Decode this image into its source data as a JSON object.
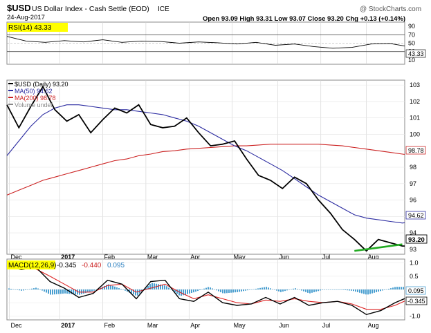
{
  "header": {
    "symbol": "$USD",
    "name": "US Dollar Index - Cash Settle (EOD)",
    "exchange": "ICE",
    "date": "24-Aug-2017",
    "ohlc": "Open 93.09  High 93.31  Low 93.07  Close 93.20  Chg +0.13 (+0.14%)",
    "watermark": "@ StockCharts.com"
  },
  "colors": {
    "price": "#000000",
    "price_down": "#cc0000",
    "ma50": "#2a2aa0",
    "ma200": "#cc2222",
    "macd": "#000000",
    "signal": "#dd2222",
    "histogram": "#4a9fd0",
    "support_line": "#22aa22",
    "highlight": "#ffff00",
    "grid": "#d0d0d0"
  },
  "rsi_panel": {
    "label": "RSI(14) 43.33",
    "current_tag": "43.33",
    "ticks": [
      "90",
      "70",
      "50",
      "30",
      "10"
    ]
  },
  "price_panel": {
    "legend": [
      {
        "label": "$USD (Daily) 93.20",
        "color": "#000000"
      },
      {
        "label": "MA(50) 94.62",
        "color": "#2a2aa0"
      },
      {
        "label": "MA(200) 98.78",
        "color": "#cc2222"
      },
      {
        "label": "Volume undef",
        "color": "#888888"
      }
    ],
    "ticks": [
      "103",
      "102",
      "101",
      "100",
      "99",
      "98",
      "97",
      "96",
      "95",
      "94",
      "93"
    ],
    "tag_price": "93.20",
    "tag_ma50": "94.62",
    "tag_ma200": "98.78"
  },
  "macd_panel": {
    "label": "MACD(12,26,9)",
    "macd_value": "-0.345",
    "signal_value": "-0.440",
    "hist_value": "0.095",
    "ticks": [
      "1.0",
      "0.5",
      "0.0",
      "-0.5",
      "-1.0"
    ],
    "tag_hist": "0.095",
    "tag_macd": "-0.345"
  },
  "x_axis": {
    "labels": [
      "Dec",
      "2017",
      "Feb",
      "Mar",
      "Apr",
      "May",
      "Jun",
      "Jul",
      "Aug"
    ]
  },
  "chart_data": [
    {
      "type": "line",
      "title": "RSI(14)",
      "x": [
        0,
        8,
        16,
        24,
        32,
        40,
        48,
        56,
        64,
        72,
        80,
        88,
        96,
        104,
        112,
        120,
        128,
        136,
        144,
        152,
        160,
        166
      ],
      "series": [
        {
          "name": "RSI(14)",
          "values": [
            66,
            55,
            52,
            56,
            53,
            58,
            52,
            55,
            54,
            50,
            53,
            51,
            48,
            52,
            45,
            48,
            42,
            38,
            40,
            48,
            49,
            43.33
          ]
        }
      ],
      "ylim": [
        0,
        100
      ],
      "reference_lines": [
        70,
        30
      ]
    },
    {
      "type": "line",
      "title": "$USD (Daily)",
      "x": [
        0,
        5,
        10,
        15,
        20,
        25,
        30,
        35,
        40,
        45,
        50,
        55,
        60,
        65,
        70,
        75,
        80,
        85,
        90,
        95,
        100,
        105,
        110,
        115,
        120,
        125,
        130,
        135,
        140,
        145,
        150,
        155,
        160,
        165,
        166
      ],
      "series": [
        {
          "name": "$USD (Daily) 93.20",
          "values": [
            101.8,
            100.4,
            101.7,
            102.9,
            101.5,
            100.8,
            101.2,
            100.1,
            100.9,
            101.6,
            101.3,
            101.8,
            100.6,
            100.4,
            100.5,
            101.0,
            100.1,
            99.3,
            99.4,
            99.6,
            98.5,
            97.5,
            97.2,
            96.7,
            97.4,
            97.0,
            96.0,
            95.2,
            94.2,
            93.6,
            92.9,
            93.6,
            93.4,
            93.2,
            93.2
          ]
        },
        {
          "name": "MA(50) 94.62",
          "values": [
            98.7,
            99.6,
            100.5,
            101.2,
            101.6,
            101.8,
            101.8,
            101.7,
            101.6,
            101.5,
            101.5,
            101.4,
            101.3,
            101.2,
            101.0,
            100.8,
            100.5,
            100.1,
            99.7,
            99.3,
            99.0,
            98.6,
            98.2,
            97.8,
            97.3,
            96.8,
            96.3,
            95.9,
            95.5,
            95.1,
            94.9,
            94.8,
            94.7,
            94.6,
            94.62
          ]
        },
        {
          "name": "MA(200) 98.78",
          "values": [
            96.3,
            96.6,
            96.9,
            97.2,
            97.4,
            97.6,
            97.8,
            98.0,
            98.2,
            98.4,
            98.5,
            98.7,
            98.8,
            98.95,
            99.0,
            99.1,
            99.15,
            99.2,
            99.25,
            99.3,
            99.3,
            99.35,
            99.4,
            99.4,
            99.4,
            99.4,
            99.4,
            99.35,
            99.3,
            99.2,
            99.1,
            99.0,
            98.9,
            98.8,
            98.78
          ]
        }
      ],
      "ylim": [
        92.7,
        103.3
      ],
      "support_line": {
        "x": [
          145,
          165
        ],
        "y": [
          92.9,
          93.3
        ]
      }
    },
    {
      "type": "line",
      "title": "MACD(12,26,9)",
      "x": [
        0,
        6,
        12,
        18,
        24,
        30,
        36,
        42,
        48,
        54,
        60,
        66,
        72,
        78,
        84,
        90,
        96,
        102,
        108,
        114,
        120,
        126,
        132,
        138,
        144,
        150,
        156,
        162,
        166
      ],
      "series": [
        {
          "name": "MACD",
          "values": [
            0.9,
            0.75,
            0.85,
            0.3,
            0.05,
            -0.3,
            -0.15,
            0.35,
            0.2,
            -0.35,
            0.3,
            0.35,
            -0.35,
            -0.45,
            -0.1,
            -0.5,
            -0.6,
            -0.55,
            -0.3,
            -0.55,
            -0.3,
            -0.6,
            -0.5,
            -0.45,
            -0.6,
            -0.95,
            -0.8,
            -0.5,
            -0.345
          ]
        },
        {
          "name": "Signal",
          "values": [
            0.85,
            0.8,
            0.78,
            0.5,
            0.2,
            -0.1,
            -0.1,
            0.15,
            0.2,
            -0.1,
            0.05,
            0.2,
            -0.1,
            -0.35,
            -0.2,
            -0.35,
            -0.5,
            -0.55,
            -0.4,
            -0.45,
            -0.35,
            -0.45,
            -0.5,
            -0.45,
            -0.55,
            -0.75,
            -0.75,
            -0.6,
            -0.44
          ]
        },
        {
          "name": "Histogram",
          "values": [
            0.05,
            -0.05,
            0.07,
            -0.2,
            -0.15,
            -0.2,
            -0.05,
            0.2,
            0.0,
            -0.25,
            0.25,
            0.15,
            -0.25,
            -0.1,
            0.1,
            -0.15,
            -0.1,
            0.0,
            0.1,
            -0.1,
            0.05,
            -0.15,
            0.0,
            0.0,
            -0.05,
            -0.2,
            -0.05,
            0.1,
            0.095
          ]
        }
      ],
      "ylim": [
        -1.15,
        1.15
      ]
    }
  ]
}
